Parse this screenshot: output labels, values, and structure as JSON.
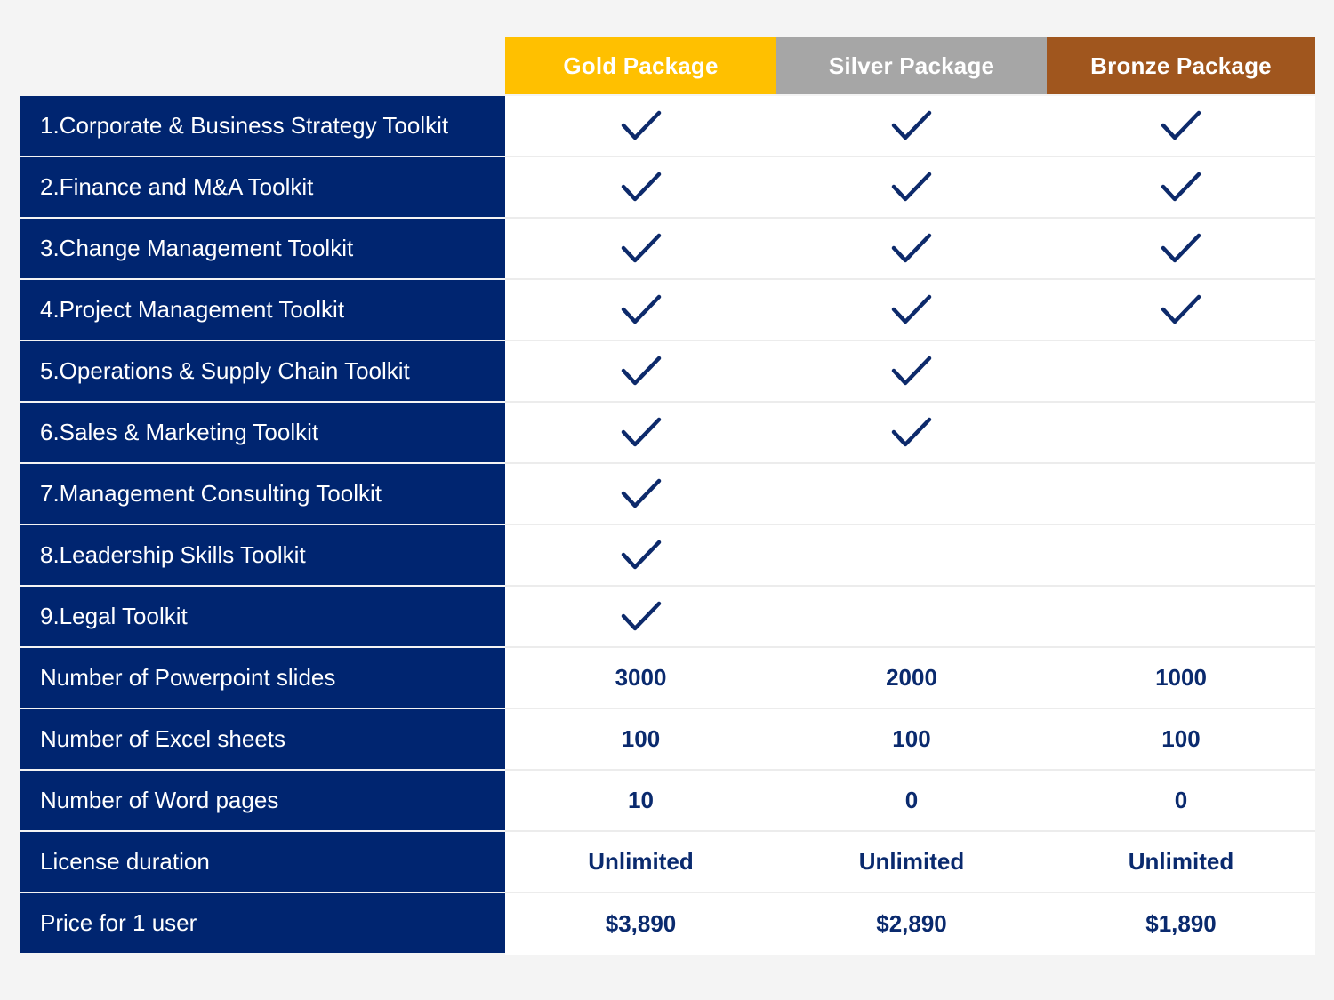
{
  "packages": [
    {
      "name": "Gold Package",
      "color": "#ffc000"
    },
    {
      "name": "Silver Package",
      "color": "#a6a6a6"
    },
    {
      "name": "Bronze Package",
      "color": "#a0561e"
    }
  ],
  "label_bg_color": "#002570",
  "check_icon": "check-icon",
  "rows": [
    {
      "label": "1.Corporate & Business Strategy Toolkit",
      "gold": true,
      "silver": true,
      "bronze": true
    },
    {
      "label": "2.Finance and M&A Toolkit",
      "gold": true,
      "silver": true,
      "bronze": true
    },
    {
      "label": "3.Change Management Toolkit",
      "gold": true,
      "silver": true,
      "bronze": true
    },
    {
      "label": "4.Project Management Toolkit",
      "gold": true,
      "silver": true,
      "bronze": true
    },
    {
      "label": "5.Operations & Supply Chain Toolkit",
      "gold": true,
      "silver": true,
      "bronze": false
    },
    {
      "label": "6.Sales & Marketing Toolkit",
      "gold": true,
      "silver": true,
      "bronze": false
    },
    {
      "label": "7.Management Consulting Toolkit",
      "gold": true,
      "silver": false,
      "bronze": false
    },
    {
      "label": "8.Leadership Skills Toolkit",
      "gold": true,
      "silver": false,
      "bronze": false
    },
    {
      "label": "9.Legal Toolkit",
      "gold": true,
      "silver": false,
      "bronze": false
    },
    {
      "label": "Number of Powerpoint slides",
      "gold": "3000",
      "silver": "2000",
      "bronze": "1000"
    },
    {
      "label": "Number of Excel sheets",
      "gold": "100",
      "silver": "100",
      "bronze": "100"
    },
    {
      "label": "Number of Word pages",
      "gold": "10",
      "silver": "0",
      "bronze": "0"
    },
    {
      "label": "License duration",
      "gold": "Unlimited",
      "silver": "Unlimited",
      "bronze": "Unlimited"
    },
    {
      "label": "Price for 1 user",
      "gold": "$3,890",
      "silver": "$2,890",
      "bronze": "$1,890"
    }
  ]
}
